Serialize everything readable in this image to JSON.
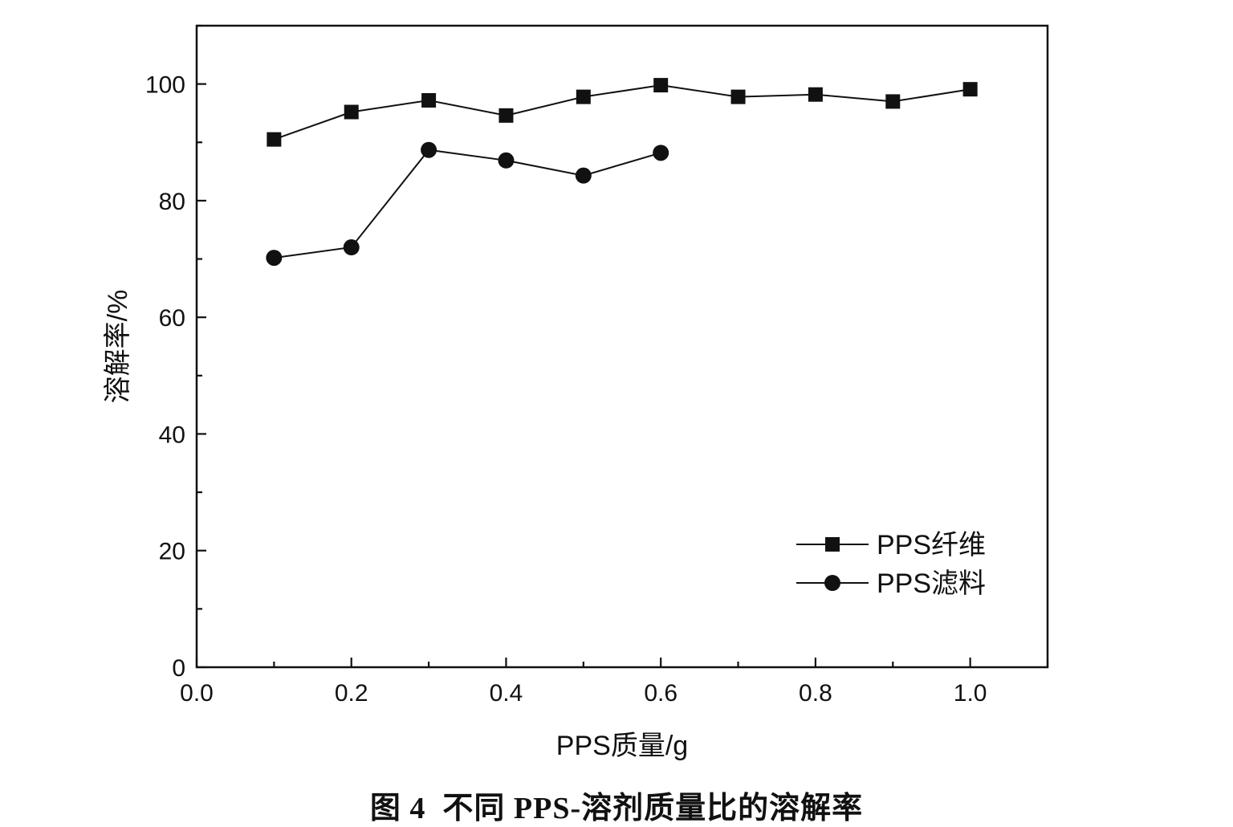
{
  "caption": {
    "figure_number": "图 4",
    "title": "不同 PPS-溶剂质量比的溶解率"
  },
  "chart_data": {
    "type": "line",
    "xlabel": "PPS质量/g",
    "ylabel": "溶解率/%",
    "xlim": [
      0.0,
      1.1
    ],
    "ylim": [
      0,
      110
    ],
    "xticks": [
      0.0,
      0.2,
      0.4,
      0.6,
      0.8,
      1.0
    ],
    "xtick_labels": [
      "0.0",
      "0.2",
      "0.4",
      "0.6",
      "0.8",
      "1.0"
    ],
    "yticks": [
      0,
      20,
      40,
      60,
      80,
      100
    ],
    "ytick_labels": [
      "0",
      "20",
      "40",
      "60",
      "80",
      "100"
    ],
    "grid": false,
    "legend_position": "bottom-right",
    "series": [
      {
        "name": "PPS纤维",
        "marker": "square",
        "color": "#111111",
        "x": [
          0.1,
          0.2,
          0.3,
          0.4,
          0.5,
          0.6,
          0.7,
          0.8,
          0.9,
          1.0
        ],
        "y": [
          90.5,
          95.2,
          97.2,
          94.6,
          97.8,
          99.8,
          97.8,
          98.2,
          97.0,
          99.1
        ]
      },
      {
        "name": "PPS滤料",
        "marker": "circle",
        "color": "#111111",
        "x": [
          0.1,
          0.2,
          0.3,
          0.4,
          0.5,
          0.6
        ],
        "y": [
          70.2,
          72.0,
          88.7,
          86.9,
          84.3,
          88.2
        ]
      }
    ]
  }
}
